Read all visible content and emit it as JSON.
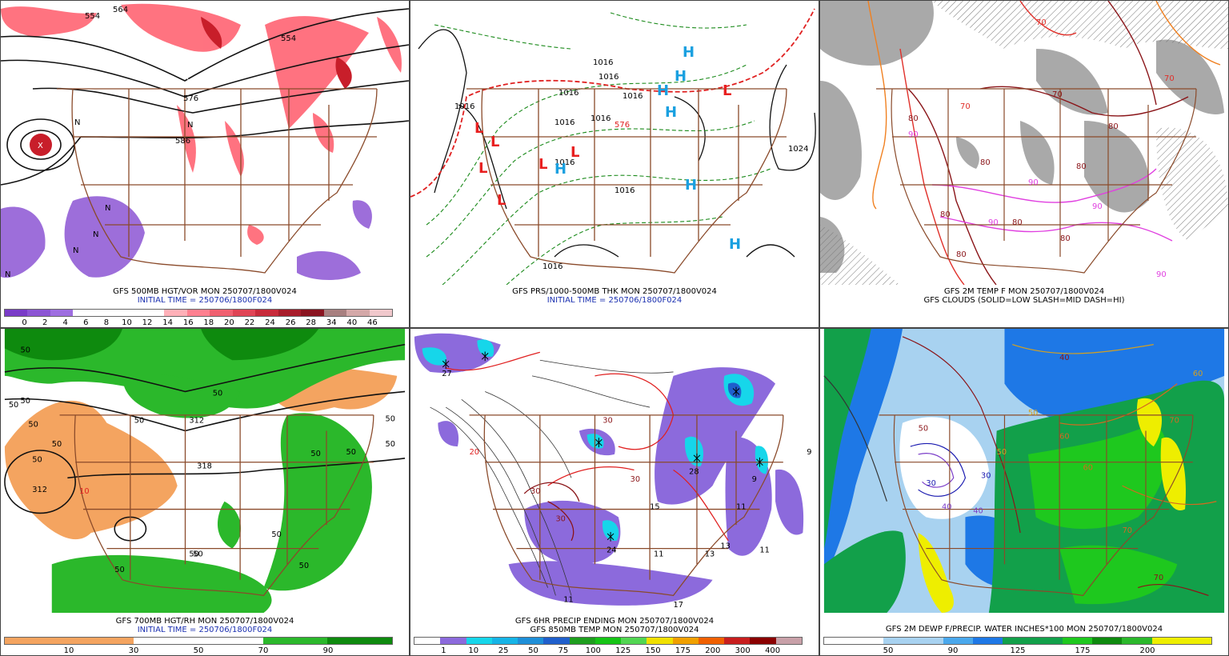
{
  "panels": [
    {
      "caption1": "GFS 500MB HGT/VOR MON 250707/1800V024",
      "caption2": "INITIAL TIME = 250706/1800F024",
      "scale_colors": [
        "#7a3cc8",
        "#8c55d4",
        "#9e6ee0",
        "#ffffff",
        "#ffffff",
        "#ffffff",
        "#ffffff",
        "#ffb0b8",
        "#ff8090",
        "#f06070",
        "#e04455",
        "#c82a3a",
        "#a81c2a",
        "#8a1420",
        "#a88080",
        "#d4a8a8",
        "#f0c8cc"
      ],
      "scale_ticks": [
        "0",
        "2",
        "4",
        "6",
        "8",
        "10",
        "12",
        "14",
        "16",
        "18",
        "20",
        "22",
        "24",
        "26",
        "28",
        "34",
        "40",
        "46"
      ],
      "map_labels": [
        "554",
        "564",
        "554",
        "576",
        "586",
        "N",
        "N",
        "N",
        "N",
        "N",
        "N",
        "X",
        "X"
      ]
    },
    {
      "caption1": "GFS PRS/1000-500MB THK MON 250707/1800V024",
      "caption2": "INITIAL TIME = 250706/1800F024",
      "map_labels": [
        "1016",
        "1016",
        "1016",
        "1016",
        "1016",
        "1016",
        "1016",
        "1016",
        "1024",
        "1016",
        "1016",
        "576",
        "L",
        "L",
        "L",
        "L",
        "L",
        "L",
        "L",
        "H",
        "H",
        "H",
        "H",
        "H",
        "H",
        "H"
      ]
    },
    {
      "caption1": "GFS 2M TEMP F MON 250707/1800V024",
      "caption2": "GFS CLOUDS (SOLID=LOW SLASH=MID DASH=HI)",
      "map_labels": [
        "70",
        "70",
        "70",
        "80",
        "80",
        "80",
        "90",
        "90",
        "90",
        "80",
        "80",
        "90",
        "70",
        "80",
        "80",
        "80",
        "90"
      ]
    },
    {
      "caption1": "GFS 700MB HGT/RH MON 250707/1800V024",
      "caption2": "INITIAL TIME = 250706/1800F024",
      "scale_colors": [
        "#f4a460",
        "#f4a460",
        "#ffffff",
        "#ffffff",
        "#2bb82b",
        "#0e8a0e"
      ],
      "scale_ticks": [
        "10",
        "30",
        "50",
        "70",
        "90"
      ],
      "map_labels": [
        "50",
        "50",
        "50",
        "50",
        "50",
        "50",
        "312",
        "10",
        "312",
        "318",
        "50",
        "50",
        "50",
        "50",
        "50",
        "50",
        "50",
        "50",
        "50",
        "50",
        "50"
      ]
    },
    {
      "caption1": "GFS 6HR PRECIP ENDING MON 250707/1800V024",
      "caption2": "GFS 850MB TEMP MON 250707/1800V024",
      "scale_colors": [
        "#ffffff",
        "#8c6adc",
        "#16d6ea",
        "#16b4e6",
        "#1e8fd8",
        "#1f5fcc",
        "#1e9e1e",
        "#16c416",
        "#52d652",
        "#f0e000",
        "#f0a000",
        "#f06000",
        "#c81e1e",
        "#8a0000",
        "#c8a0a8"
      ],
      "scale_ticks": [
        "1",
        "10",
        "25",
        "50",
        "75",
        "100",
        "125",
        "150",
        "175",
        "200",
        "300",
        "400"
      ],
      "map_labels": [
        "27",
        "9",
        "17",
        "24",
        "15",
        "30",
        "30",
        "30",
        "30",
        "11",
        "11",
        "13",
        "9",
        "13",
        "11",
        "11",
        "28",
        "20"
      ]
    },
    {
      "caption1": "GFS 2M DEWP F/PRECIP. WATER INCHES*100 MON 250707/1800V024",
      "caption2": "",
      "scale_colors": [
        "#ffffff",
        "#ffffff",
        "#a8d2f0",
        "#a8d2f0",
        "#4aa8ec",
        "#1e78e6",
        "#12a04a",
        "#12a04a",
        "#1ec81e",
        "#0e8a0e",
        "#2bb82b",
        "#eeee00",
        "#eeee00"
      ],
      "scale_ticks": [
        "50",
        "90",
        "125",
        "175",
        "200"
      ],
      "map_labels": [
        "40",
        "40",
        "50",
        "60",
        "70",
        "70",
        "30",
        "30",
        "50",
        "40",
        "50",
        "60",
        "70",
        "60"
      ]
    }
  ]
}
